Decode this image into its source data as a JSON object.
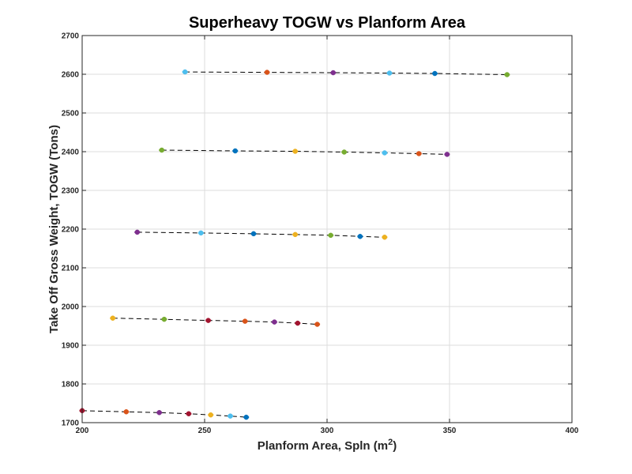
{
  "chart_data": {
    "type": "scatter",
    "title": "Superheavy TOGW vs Planform Area",
    "xlabel": "Planform Area, Spln (m",
    "xlabel_sup": "2",
    "xlabel_close": ")",
    "ylabel": "Take Off Gross Weight, TOGW (Tons)",
    "xlim": [
      200,
      400
    ],
    "ylim": [
      1700,
      2700
    ],
    "xticks": [
      200,
      250,
      300,
      350,
      400
    ],
    "yticks": [
      1700,
      1800,
      1900,
      2000,
      2100,
      2200,
      2300,
      2400,
      2500,
      2600,
      2700
    ],
    "grid": true,
    "series": [
      {
        "points": [
          {
            "x": 200.0,
            "y": 1731,
            "color": "#A2142F"
          },
          {
            "x": 218.0,
            "y": 1728,
            "color": "#D95319"
          },
          {
            "x": 231.5,
            "y": 1726,
            "color": "#7E2F8E"
          },
          {
            "x": 243.5,
            "y": 1723,
            "color": "#A2142F"
          },
          {
            "x": 252.5,
            "y": 1720,
            "color": "#EDB120"
          },
          {
            "x": 260.5,
            "y": 1717,
            "color": "#4DBEEE"
          },
          {
            "x": 267.0,
            "y": 1714,
            "color": "#0072BD"
          }
        ]
      },
      {
        "points": [
          {
            "x": 212.5,
            "y": 1970,
            "color": "#EDB120"
          },
          {
            "x": 233.5,
            "y": 1967,
            "color": "#77AC30"
          },
          {
            "x": 251.5,
            "y": 1964,
            "color": "#A2142F"
          },
          {
            "x": 266.5,
            "y": 1962,
            "color": "#D95319"
          },
          {
            "x": 278.5,
            "y": 1960,
            "color": "#7E2F8E"
          },
          {
            "x": 288.0,
            "y": 1957,
            "color": "#A2142F"
          },
          {
            "x": 296.0,
            "y": 1954,
            "color": "#D95319"
          }
        ]
      },
      {
        "points": [
          {
            "x": 222.5,
            "y": 2192,
            "color": "#7E2F8E"
          },
          {
            "x": 248.5,
            "y": 2190,
            "color": "#4DBEEE"
          },
          {
            "x": 270.0,
            "y": 2188,
            "color": "#0072BD"
          },
          {
            "x": 287.0,
            "y": 2186,
            "color": "#EDB120"
          },
          {
            "x": 301.5,
            "y": 2184,
            "color": "#77AC30"
          },
          {
            "x": 313.5,
            "y": 2181,
            "color": "#0072BD"
          },
          {
            "x": 323.5,
            "y": 2179,
            "color": "#EDB120"
          }
        ]
      },
      {
        "points": [
          {
            "x": 232.5,
            "y": 2404,
            "color": "#77AC30"
          },
          {
            "x": 262.5,
            "y": 2402,
            "color": "#0072BD"
          },
          {
            "x": 287.0,
            "y": 2401,
            "color": "#EDB120"
          },
          {
            "x": 307.0,
            "y": 2399,
            "color": "#77AC30"
          },
          {
            "x": 323.5,
            "y": 2397,
            "color": "#4DBEEE"
          },
          {
            "x": 337.5,
            "y": 2395,
            "color": "#D95319"
          },
          {
            "x": 349.0,
            "y": 2393,
            "color": "#7E2F8E"
          }
        ]
      },
      {
        "points": [
          {
            "x": 242.0,
            "y": 2606,
            "color": "#4DBEEE"
          },
          {
            "x": 275.5,
            "y": 2605,
            "color": "#D95319"
          },
          {
            "x": 302.5,
            "y": 2604,
            "color": "#7E2F8E"
          },
          {
            "x": 325.5,
            "y": 2603,
            "color": "#4DBEEE"
          },
          {
            "x": 344.0,
            "y": 2602,
            "color": "#0072BD"
          },
          {
            "x": 373.5,
            "y": 2599,
            "color": "#77AC30"
          }
        ]
      }
    ]
  }
}
